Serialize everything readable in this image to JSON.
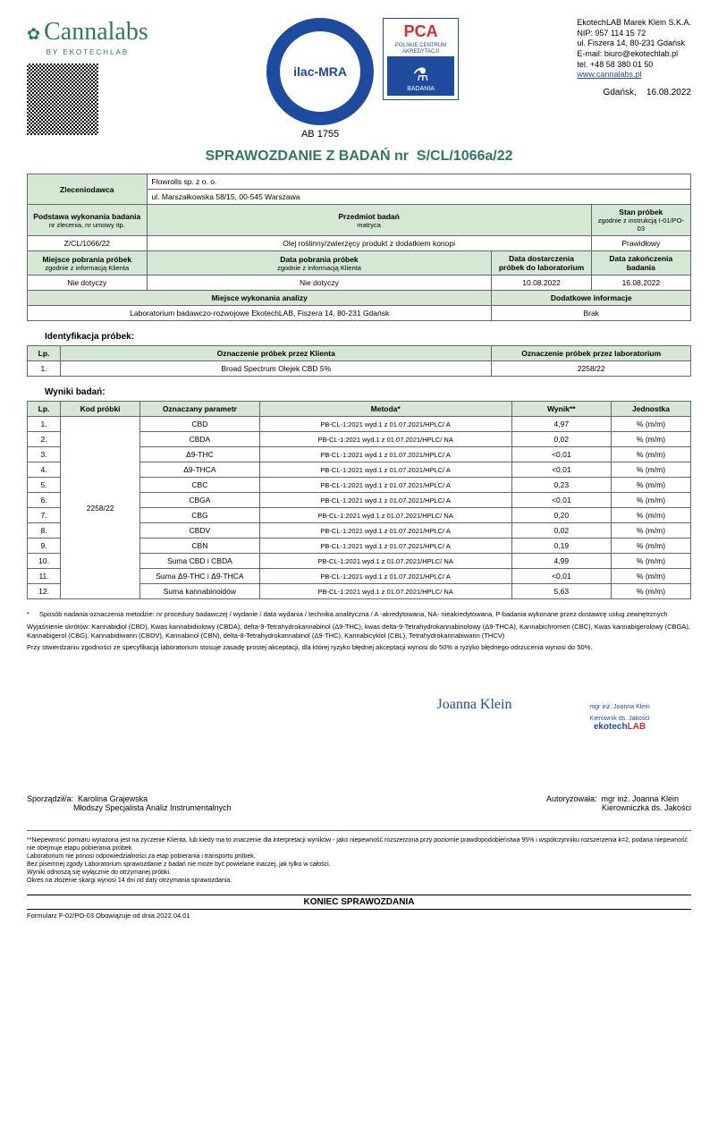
{
  "company": {
    "name": "EkotechLAB Marek Klein S.K.A.",
    "nip": "NIP: 957 114 15 72",
    "address": "ul. Fiszera 14, 80-231 Gdańsk",
    "email": "E-mail: biuro@ekotechlab.pl",
    "phone": "tel. +48 58 380 01 50",
    "website": "www.cannalabs.pl"
  },
  "logo": {
    "brand": "Cannalabs",
    "subtitle": "BY EKOTECHLAB"
  },
  "ilac": {
    "text": "ilac-MRA",
    "ab": "AB 1755"
  },
  "pca": {
    "title": "PCA",
    "sub": "POLSKIE CENTRUM AKREDYTACJI",
    "badge": "BADANIA"
  },
  "dateline": {
    "city": "Gdańsk,",
    "date": "16.08.2022"
  },
  "report_title_label": "SPRAWOZDANIE Z BADAŃ nr",
  "report_number": "S/CL/1066a/22",
  "info": {
    "client_hdr": "Zleceniodawca",
    "client_name": "Flowrolls sp. z o. o.",
    "client_addr": "ul. Marszałkowska 58/15, 00-545 Warszawa",
    "basis_hdr": "Podstawa wykonania badania",
    "basis_sub": "nr zlecenia, nr umowy itp.",
    "subject_hdr": "Przedmiot badań",
    "subject_sub": "matryca",
    "state_hdr": "Stan próbek",
    "state_sub": "zgodnie z instrukcją I-01/PO-03",
    "basis_val": "Z/CL/1066/22",
    "subject_val": "Olej roślinny/zwierzęcy produkt z dodatkiem konopi",
    "state_val": "Prawidłowy",
    "place_hdr": "Miejsce pobrania próbek",
    "place_sub": "zgodnie z informacją Klienta",
    "date_coll_hdr": "Data pobrania próbek",
    "date_coll_sub": "zgodnie z informacją Klienta",
    "date_deliv_hdr": "Data dostarczenia próbek do laboratorium",
    "date_end_hdr": "Data zakończenia badania",
    "na1": "Nie dotyczy",
    "na2": "Nie dotyczy",
    "date_deliv": "10.08.2022",
    "date_end": "16.08.2022",
    "analysis_place_hdr": "Miejsce wykonania analizy",
    "extra_hdr": "Dodatkowe informacje",
    "analysis_place": "Laboratorium badawczo-rozwojowe EkotechLAB, Fiszera 14, 80-231 Gdańsk",
    "extra": "Brak"
  },
  "ident": {
    "title": "Identyfikacja próbek:",
    "lp": "Lp.",
    "client_col": "Oznaczenie próbek przez Klienta",
    "lab_col": "Oznaczenie próbek przez laboratorium",
    "row_lp": "1.",
    "row_client": "Broad Spectrum Olejek CBD 5%",
    "row_lab": "2258/22"
  },
  "results": {
    "title": "Wyniki badań:",
    "headers": {
      "lp": "Lp.",
      "code": "Kod próbki",
      "param": "Oznaczany parametr",
      "method": "Metoda*",
      "result": "Wynik**",
      "unit": "Jednostka"
    },
    "sample_code": "2258/22",
    "rows": [
      {
        "lp": "1.",
        "param": "CBD",
        "method": "PB-CL-1:2021 wyd.1 z 01.07.2021/HPLC/  A",
        "result": "4,97",
        "unit": "% (m/m)"
      },
      {
        "lp": "2.",
        "param": "CBDA",
        "method": "PB-CL-1:2021 wyd.1 z 01.07.2021/HPLC/  NA",
        "result": "0,02",
        "unit": "% (m/m)"
      },
      {
        "lp": "3.",
        "param": "Δ9-THC",
        "method": "PB-CL-1:2021 wyd.1 z 01.07.2021/HPLC/  A",
        "result": "<0,01",
        "unit": "% (m/m)"
      },
      {
        "lp": "4.",
        "param": "Δ9-THCA",
        "method": "PB-CL-1:2021 wyd.1 z 01.07.2021/HPLC/  A",
        "result": "<0,01",
        "unit": "% (m/m)"
      },
      {
        "lp": "5.",
        "param": "CBC",
        "method": "PB-CL-1:2021 wyd.1 z 01.07.2021/HPLC/  A",
        "result": "0,23",
        "unit": "% (m/m)"
      },
      {
        "lp": "6.",
        "param": "CBGA",
        "method": "PB-CL-1:2021 wyd.1 z 01.07.2021/HPLC/  A",
        "result": "<0,01",
        "unit": "% (m/m)"
      },
      {
        "lp": "7.",
        "param": "CBG",
        "method": "PB-CL-1:2021 wyd.1 z 01.07.2021/HPLC/  NA",
        "result": "0,20",
        "unit": "% (m/m)"
      },
      {
        "lp": "8.",
        "param": "CBDV",
        "method": "PB-CL-1:2021 wyd.1 z 01.07.2021/HPLC/  A",
        "result": "0,02",
        "unit": "% (m/m)"
      },
      {
        "lp": "9.",
        "param": "CBN",
        "method": "PB-CL-1:2021 wyd.1 z 01.07.2021/HPLC/  A",
        "result": "0,19",
        "unit": "% (m/m)"
      },
      {
        "lp": "10.",
        "param": "Suma CBD i CBDA",
        "method": "PB-CL-1:2021 wyd.1 z 01.07.2021/HPLC/  NA",
        "result": "4,99",
        "unit": "% (m/m)"
      },
      {
        "lp": "11.",
        "param": "Suma Δ9-THC i Δ9-THCA",
        "method": "PB-CL-1:2021 wyd.1 z 01.07.2021/HPLC/  A",
        "result": "<0,01",
        "unit": "% (m/m)"
      },
      {
        "lp": "12.",
        "param": "Suma kannabinoidów",
        "method": "PB-CL-1:2021 wyd.1 z 01.07.2021/HPLC/  NA",
        "result": "5,63",
        "unit": "% (m/m)"
      }
    ]
  },
  "footnotes": {
    "f1": "Sposób nadania oznaczenia metodzie: nr procedury badawczej / wydanie / data wydania / technika analityczna / A -akredytowana, NA- nieakredytowana, P-badania wykonane przez dostawcę usług zewnętrznych",
    "f2": "Wyjaśnienie skrótów: Kannabidiol (CBD), Kwas kannabidiolowy (CBDA), delta-9-Tetrahydrokannabinol (Δ9-THC), kwas delta-9-Tetrahydrokannabinolowy (Δ9-THCA), Kannabichromen (CBC), Kwas kannabigerolowy (CBGA), Kannabigerol (CBG), Kannabidiwarin (CBDV), Kannabinol (CBN), delta-8-Tetrahydrokannabinol (Δ9-THC), Kannabicyklol (CBL), Tetrahydrokannabiwarin (THCV)",
    "f3": "Przy stwierdzaniu zgodności ze specyfikacją laboratorium stosuje zasadę prostej akceptacji, dla której ryzyko błędnej akceptacji wynosi do 50% a ryzyko błędnego odrzucenia wynosi do 50%."
  },
  "sign": {
    "prepared_label": "Sporządził/a:",
    "prepared_name": "Karolina Grajewska",
    "prepared_title": "Młodszy Specjalista Analiz Instrumentalnych",
    "auth_label": "Autoryzowała:",
    "auth_name": "mgr inż. Joanna Klein",
    "auth_title": "Kierowniczka ds. Jakości",
    "sig_caption1": "mgr inż. Joanna Klein",
    "sig_caption2": "Kierownik ds. Jakości"
  },
  "disclaimer": "**Niepewność pomiaru wyrażona jest na życzenie Klienta,  lub kiedy ma to znaczenie dla interpretacji wyników - jako niepewność rozszerzona przy poziomie prawdopodobieństwa 95% i współczynniku rozszerzenia k=2, podana niepewność nie obejmuje etapu pobierania próbek.\nLaboratorium nie ponosi odpowiedzialności za etap pobierania i transportu próbek.\nBez pisemnej zgody Laboratorium sprawozdanie z badań nie może być powielane inaczej, jak tylko w całości.\nWyniki odnoszą się wyłącznie do otrzymanej próbki.\nOkres na złożenie skargi wynosi 14 dni od daty otrzymania sprawozdania.",
  "end": "KONIEC SPRAWOZDANIA",
  "form_footer": "Formularz F-02/PO-03 Obowiązuje od dnia 2022.04.01"
}
